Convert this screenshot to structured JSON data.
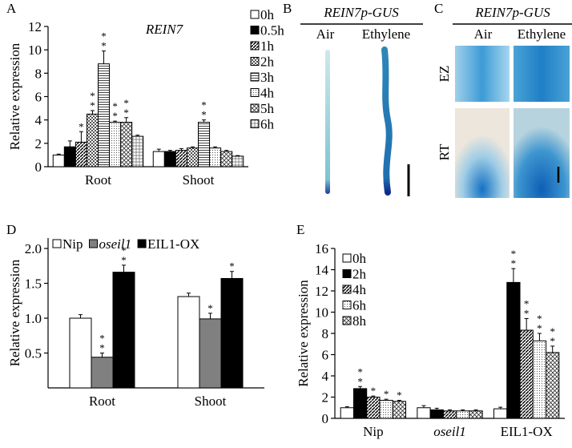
{
  "chart_data": [
    {
      "type": "bar",
      "panel": "A",
      "title": "REIN7",
      "ylabel": "Relative expression",
      "categories": [
        "Root",
        "Shoot"
      ],
      "ylim": [
        0,
        12
      ],
      "yticks": [
        0,
        2,
        4,
        6,
        8,
        10,
        12
      ],
      "series": [
        {
          "name": "0h",
          "color": "#ffffff",
          "values": [
            1.0,
            1.3
          ],
          "errors": [
            0.08,
            0.2
          ],
          "significance": [
            null,
            null
          ]
        },
        {
          "name": "0.5h",
          "color": "#000000",
          "values": [
            1.7,
            1.3
          ],
          "errors": [
            0.5,
            0.1
          ],
          "significance": [
            null,
            null
          ]
        },
        {
          "name": "1h",
          "color": "#666666",
          "pattern": "diag",
          "values": [
            2.1,
            1.4
          ],
          "errors": [
            0.9,
            0.15
          ],
          "significance": [
            "*",
            null
          ]
        },
        {
          "name": "2h",
          "color": "#999999",
          "pattern": "checker",
          "values": [
            4.5,
            1.6
          ],
          "errors": [
            0.3,
            0.1
          ],
          "significance": [
            "**",
            null
          ]
        },
        {
          "name": "3h",
          "color": "#bbbbbb",
          "pattern": "hlines",
          "values": [
            8.8,
            3.8
          ],
          "errors": [
            1.1,
            0.2
          ],
          "significance": [
            "**",
            "**"
          ]
        },
        {
          "name": "4h",
          "color": "#dddddd",
          "pattern": "dots",
          "values": [
            3.8,
            1.6
          ],
          "errors": [
            0.1,
            0.1
          ],
          "significance": [
            "**",
            null
          ]
        },
        {
          "name": "5h",
          "color": "#aaaaaa",
          "pattern": "cross",
          "values": [
            3.8,
            1.3
          ],
          "errors": [
            0.4,
            0.1
          ],
          "significance": [
            "**",
            null
          ]
        },
        {
          "name": "6h",
          "color": "#cccccc",
          "pattern": "grid",
          "values": [
            2.6,
            0.9
          ],
          "errors": [
            0.1,
            0.05
          ],
          "significance": [
            null,
            null
          ]
        }
      ]
    },
    {
      "type": "bar",
      "panel": "D",
      "ylabel": "Relative expression",
      "categories": [
        "Root",
        "Shoot"
      ],
      "ylim": [
        0,
        2.15
      ],
      "yticks": [
        0.5,
        {
          "value": 1.0,
          "label": "1.0"
        },
        1.5,
        {
          "value": 2.0,
          "label": "2.0"
        }
      ],
      "series": [
        {
          "name": "Nip",
          "color": "#ffffff",
          "values": [
            1.0,
            1.31
          ],
          "errors": [
            0.05,
            0.05
          ],
          "significance": [
            null,
            null
          ]
        },
        {
          "name": "oseil1",
          "italic": true,
          "color": "#808080",
          "values": [
            0.44,
            0.99
          ],
          "errors": [
            0.06,
            0.08
          ],
          "significance": [
            "**",
            "*"
          ]
        },
        {
          "name": "EIL1-OX",
          "color": "#000000",
          "values": [
            1.66,
            1.57
          ],
          "errors": [
            0.1,
            0.1
          ],
          "significance": [
            "**",
            "*"
          ]
        }
      ]
    },
    {
      "type": "bar",
      "panel": "E",
      "ylabel": "Relative expression",
      "categories": [
        "Nip",
        "oseil1",
        "EIL1-OX"
      ],
      "italic_categories": [
        false,
        true,
        false
      ],
      "ylim": [
        0,
        16
      ],
      "yticks": [
        0,
        2,
        4,
        6,
        8,
        10,
        12,
        14,
        16
      ],
      "series": [
        {
          "name": "0h",
          "color": "#ffffff",
          "values": [
            1.0,
            1.0,
            0.9
          ],
          "errors": [
            0.1,
            0.2,
            0.15
          ],
          "significance": [
            null,
            null,
            null
          ]
        },
        {
          "name": "2h",
          "color": "#000000",
          "values": [
            2.8,
            0.8,
            12.8
          ],
          "errors": [
            0.2,
            0.15,
            1.3
          ],
          "significance": [
            "**",
            null,
            "**"
          ]
        },
        {
          "name": "4h",
          "color": "#888888",
          "pattern": "diag",
          "values": [
            2.0,
            0.7,
            8.3
          ],
          "errors": [
            0.1,
            0.1,
            1.1
          ],
          "significance": [
            "*",
            null,
            "**"
          ]
        },
        {
          "name": "6h",
          "color": "#dddddd",
          "pattern": "dots",
          "values": [
            1.7,
            0.7,
            7.3
          ],
          "errors": [
            0.1,
            0.1,
            0.7
          ],
          "significance": [
            "*",
            null,
            "**"
          ]
        },
        {
          "name": "8h",
          "color": "#bbbbbb",
          "pattern": "cross",
          "values": [
            1.6,
            0.7,
            6.2
          ],
          "errors": [
            0.1,
            0.1,
            0.6
          ],
          "significance": [
            "*",
            null,
            "**"
          ]
        }
      ]
    }
  ],
  "images": [
    {
      "panel": "B",
      "title": "REIN7p-GUS",
      "columns": [
        "Air",
        "Ethylene"
      ]
    },
    {
      "panel": "C",
      "title": "REIN7p-GUS",
      "columns": [
        "Air",
        "Ethylene"
      ],
      "rows": [
        "EZ",
        "RT"
      ]
    }
  ]
}
